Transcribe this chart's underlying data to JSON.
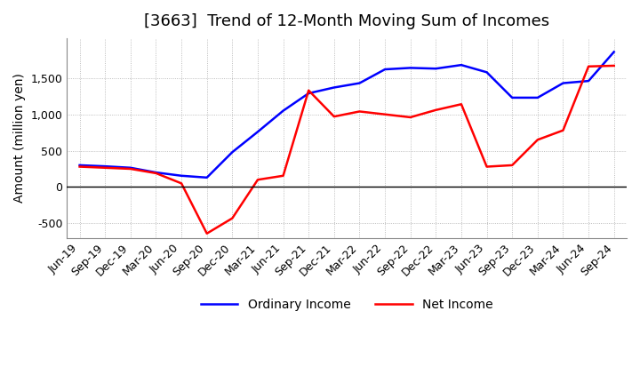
{
  "title": "[3663]  Trend of 12-Month Moving Sum of Incomes",
  "ylabel": "Amount (million yen)",
  "xlim_labels": [
    "Jun-19",
    "Sep-19",
    "Dec-19",
    "Mar-20",
    "Jun-20",
    "Sep-20",
    "Dec-20",
    "Mar-21",
    "Jun-21",
    "Sep-21",
    "Dec-21",
    "Mar-22",
    "Jun-22",
    "Sep-22",
    "Dec-22",
    "Mar-23",
    "Jun-23",
    "Sep-23",
    "Dec-23",
    "Mar-24",
    "Jun-24",
    "Sep-24"
  ],
  "ordinary_income": [
    300,
    285,
    265,
    200,
    155,
    130,
    480,
    760,
    1050,
    1290,
    1370,
    1430,
    1620,
    1640,
    1630,
    1680,
    1580,
    1230,
    1230,
    1430,
    1460,
    1860
  ],
  "net_income": [
    280,
    265,
    250,
    190,
    50,
    -640,
    -430,
    100,
    155,
    1330,
    970,
    1040,
    1000,
    960,
    1060,
    1140,
    280,
    300,
    650,
    780,
    1660,
    1670
  ],
  "ordinary_color": "#0000ff",
  "net_color": "#ff0000",
  "ylim": [
    -700,
    2050
  ],
  "yticks": [
    -500,
    0,
    500,
    1000,
    1500
  ],
  "background_color": "#ffffff",
  "grid_color": "#aaaaaa",
  "title_fontsize": 13,
  "axis_fontsize": 10,
  "tick_fontsize": 9,
  "legend_labels": [
    "Ordinary Income",
    "Net Income"
  ],
  "line_width": 1.8
}
